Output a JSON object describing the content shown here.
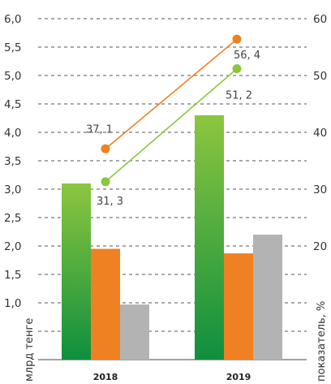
{
  "chart_data": {
    "type": "bar",
    "categories": [
      "2018",
      "2019"
    ],
    "left_axis": {
      "label": "млрд тенге",
      "ylim": [
        0,
        6
      ],
      "ticks": [
        "1,0",
        "1,5",
        "2,0",
        "2,5",
        "3,0",
        "3,5",
        "4,0",
        "4,5",
        "5,0",
        "5,5",
        "6,0"
      ],
      "tick_values": [
        1.0,
        1.5,
        2.0,
        2.5,
        3.0,
        3.5,
        4.0,
        4.5,
        5.0,
        5.5,
        6.0
      ]
    },
    "right_axis": {
      "label": "показатель, %",
      "ylim": [
        0,
        60
      ],
      "ticks": [
        "20",
        "30",
        "40",
        "50",
        "60"
      ],
      "tick_values": [
        20,
        30,
        40,
        50,
        60
      ]
    },
    "bar_series": [
      {
        "values": [
          3.1,
          4.3
        ],
        "color": "#5cb744"
      },
      {
        "values": [
          1.95,
          1.87
        ],
        "color": "#f08122"
      },
      {
        "values": [
          0.97,
          2.2
        ],
        "color": "#b3b3b3"
      }
    ],
    "line_series": [
      {
        "values": [
          37.1,
          56.4
        ],
        "labels": [
          "37, 1",
          "56, 4"
        ],
        "color": "#f08122"
      },
      {
        "values": [
          31.3,
          51.2
        ],
        "labels": [
          "31, 3",
          "51, 2"
        ],
        "color": "#8cc63f"
      }
    ],
    "grid": "dashed-horizontal"
  }
}
